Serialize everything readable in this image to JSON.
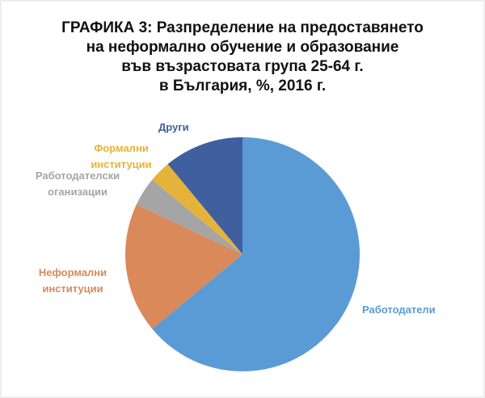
{
  "chart_data": {
    "type": "pie",
    "title": [
      "ГРАФИКА 3:  Разпределение на предоставянето",
      "на неформално обучение и образование",
      "във възрастовата група 25-64 г.",
      "в България, %, 2016 г."
    ],
    "series": [
      {
        "name": "Работодатели",
        "color": "#5b9bd5",
        "value": 64
      },
      {
        "name": "Неформални институции",
        "color": "#d9895a",
        "value": 18
      },
      {
        "name": "Работодателски оганизации",
        "color": "#a5a5a5",
        "value": 4
      },
      {
        "name": "Формални институции",
        "color": "#e6b33a",
        "value": 3
      },
      {
        "name": "Други",
        "color": "#3f5f9f",
        "value": 11
      }
    ]
  }
}
